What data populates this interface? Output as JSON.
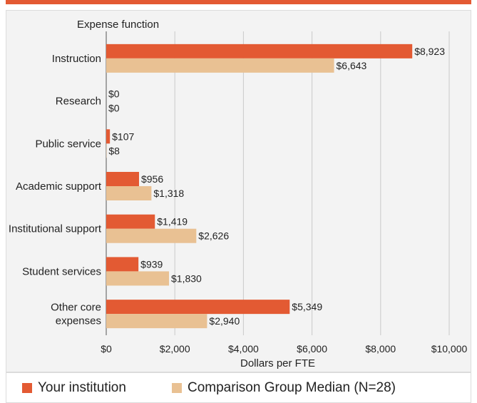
{
  "colors": {
    "accent_rule": "#e35a33",
    "your_institution": "#e35a33",
    "comparison": "#e9c193",
    "grid": "#c9c9c9",
    "axis": "#555555"
  },
  "chart_data": {
    "type": "bar",
    "orientation": "horizontal",
    "title": "",
    "category_axis_label": "Expense function",
    "xlabel": "Dollars per FTE",
    "xlim": [
      0,
      10000
    ],
    "xticks": [
      0,
      2000,
      4000,
      6000,
      8000,
      10000
    ],
    "xtick_labels": [
      "$0",
      "$2,000",
      "$4,000",
      "$6,000",
      "$8,000",
      "$10,000"
    ],
    "grid": true,
    "legend_position": "bottom",
    "categories": [
      [
        "Instruction"
      ],
      [
        "Research"
      ],
      [
        "Public service"
      ],
      [
        "Academic support"
      ],
      [
        "Institutional support"
      ],
      [
        "Student services"
      ],
      [
        "Other core",
        "expenses"
      ]
    ],
    "series": [
      {
        "name": "Your institution",
        "values": [
          8923,
          0,
          107,
          956,
          1419,
          939,
          5349
        ],
        "labels": [
          "$8,923",
          "$0",
          "$107",
          "$956",
          "$1,419",
          "$939",
          "$5,349"
        ]
      },
      {
        "name": "Comparison Group Median (N=28)",
        "values": [
          6643,
          0,
          8,
          1318,
          2626,
          1830,
          2940
        ],
        "labels": [
          "$6,643",
          "$0",
          "$8",
          "$1,318",
          "$2,626",
          "$1,830",
          "$2,940"
        ]
      }
    ]
  }
}
